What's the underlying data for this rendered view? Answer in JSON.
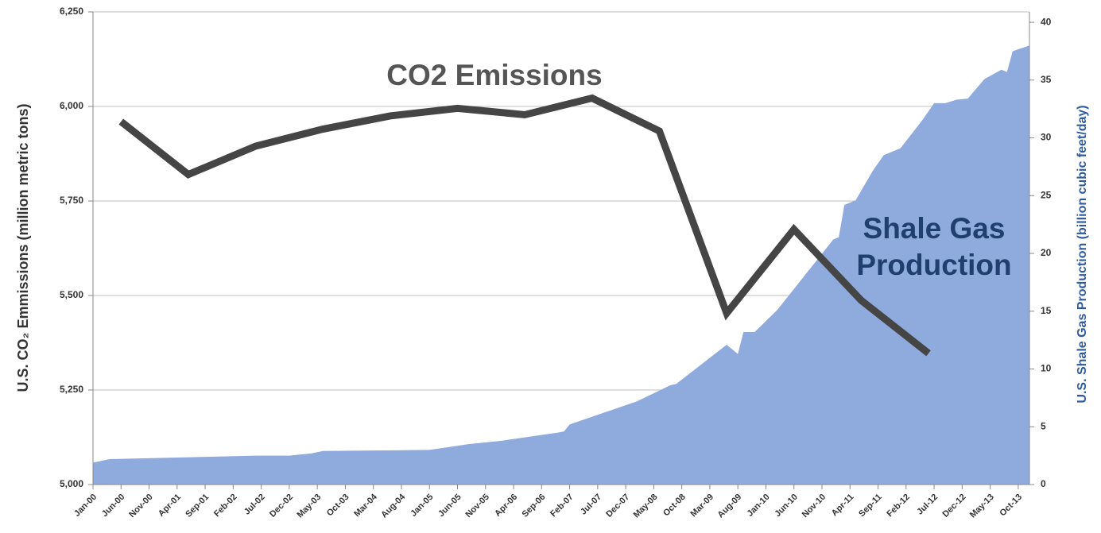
{
  "chart_data": {
    "type": "line",
    "annotations": [
      {
        "text": "CO2 Emissions",
        "color": "#555555"
      },
      {
        "text": [
          "Shale Gas",
          "Production"
        ],
        "color": "#1f3f6e"
      }
    ],
    "ylabel": "U.S. CO₂ Emmissions (million metric tons)",
    "y2label": "U.S. Shale Gas Production (billion cubic feet/day)",
    "xlim": [
      "2000-01",
      "2013-12"
    ],
    "xticks": [
      {
        "value": "2000-01",
        "label": "Jan-00"
      },
      {
        "value": "2000-06",
        "label": "Jun-00"
      },
      {
        "value": "2000-11",
        "label": "Nov-00"
      },
      {
        "value": "2001-04",
        "label": "Apr-01"
      },
      {
        "value": "2001-09",
        "label": "Sep-01"
      },
      {
        "value": "2002-02",
        "label": "Feb-02"
      },
      {
        "value": "2002-07",
        "label": "Jul-02"
      },
      {
        "value": "2002-12",
        "label": "Dec-02"
      },
      {
        "value": "2003-05",
        "label": "May-03"
      },
      {
        "value": "2003-10",
        "label": "Oct-03"
      },
      {
        "value": "2004-03",
        "label": "Mar-04"
      },
      {
        "value": "2004-08",
        "label": "Aug-04"
      },
      {
        "value": "2005-01",
        "label": "Jan-05"
      },
      {
        "value": "2005-06",
        "label": "Jun-05"
      },
      {
        "value": "2005-11",
        "label": "Nov-05"
      },
      {
        "value": "2006-04",
        "label": "Apr-06"
      },
      {
        "value": "2006-09",
        "label": "Sep-06"
      },
      {
        "value": "2007-02",
        "label": "Feb-07"
      },
      {
        "value": "2007-07",
        "label": "Jul-07"
      },
      {
        "value": "2007-12",
        "label": "Dec-07"
      },
      {
        "value": "2008-05",
        "label": "May-08"
      },
      {
        "value": "2008-10",
        "label": "Oct-08"
      },
      {
        "value": "2009-03",
        "label": "Mar-09"
      },
      {
        "value": "2009-08",
        "label": "Aug-09"
      },
      {
        "value": "2010-01",
        "label": "Jan-10"
      },
      {
        "value": "2010-06",
        "label": "Jun-10"
      },
      {
        "value": "2010-11",
        "label": "Nov-10"
      },
      {
        "value": "2011-04",
        "label": "Apr-11"
      },
      {
        "value": "2011-09",
        "label": "Sep-11"
      },
      {
        "value": "2012-02",
        "label": "Feb-12"
      },
      {
        "value": "2012-07",
        "label": "Jul-12"
      },
      {
        "value": "2012-12",
        "label": "Dec-12"
      },
      {
        "value": "2013-05",
        "label": "May-13"
      },
      {
        "value": "2013-10",
        "label": "Oct-13"
      }
    ],
    "ylim": [
      5000,
      6250
    ],
    "yticks": [
      {
        "value": 5000,
        "label": "5,000"
      },
      {
        "value": 5250,
        "label": "5,250"
      },
      {
        "value": 5500,
        "label": "5,500"
      },
      {
        "value": 5750,
        "label": "5,750"
      },
      {
        "value": 6000,
        "label": "6,000"
      },
      {
        "value": 6250,
        "label": "6,250"
      }
    ],
    "y2lim": [
      0,
      40.9
    ],
    "y2ticks": [
      0,
      5,
      10,
      15,
      20,
      25,
      30,
      35,
      40
    ],
    "grid": true,
    "series": [
      {
        "name": "CO2 Emissions",
        "color": "#454545",
        "type": "line",
        "x": [
          "2000-06",
          "2001-06",
          "2002-06",
          "2003-06",
          "2004-06",
          "2005-06",
          "2006-06",
          "2007-06",
          "2008-06",
          "2009-06",
          "2010-06",
          "2011-06",
          "2012-06"
        ],
        "values": [
          5960,
          5820,
          5895,
          5940,
          5975,
          5995,
          5978,
          6022,
          5935,
          5453,
          5675,
          5487,
          5347
        ]
      },
      {
        "name": "Shale Gas Production",
        "color": "#8faadc",
        "type": "area",
        "axis": "y2",
        "x": [
          "2000-01",
          "2000-04",
          "2001-01",
          "2002-06",
          "2002-12",
          "2003-04",
          "2003-06",
          "2005-01",
          "2005-08",
          "2006-02",
          "2006-12",
          "2007-01",
          "2007-02",
          "2008-02",
          "2008-08",
          "2008-09",
          "2009-06",
          "2009-08",
          "2009-09",
          "2009-11",
          "2010-03",
          "2010-04",
          "2011-01",
          "2011-02",
          "2011-03",
          "2011-05",
          "2011-08",
          "2011-10",
          "2012-01",
          "2012-05",
          "2012-07",
          "2012-09",
          "2012-11",
          "2013-01",
          "2013-04",
          "2013-07",
          "2013-08",
          "2013-09",
          "2013-12"
        ],
        "values": [
          1.9,
          2.2,
          2.3,
          2.5,
          2.5,
          2.7,
          2.9,
          3.0,
          3.5,
          3.8,
          4.5,
          4.6,
          5.2,
          7.2,
          8.6,
          8.7,
          12.1,
          11.3,
          13.2,
          13.2,
          15.1,
          15.7,
          21.2,
          21.4,
          24.2,
          24.6,
          27.1,
          28.5,
          29.1,
          31.6,
          33.0,
          33.0,
          33.3,
          33.4,
          35.1,
          35.9,
          35.7,
          37.5,
          38.0
        ]
      }
    ]
  }
}
